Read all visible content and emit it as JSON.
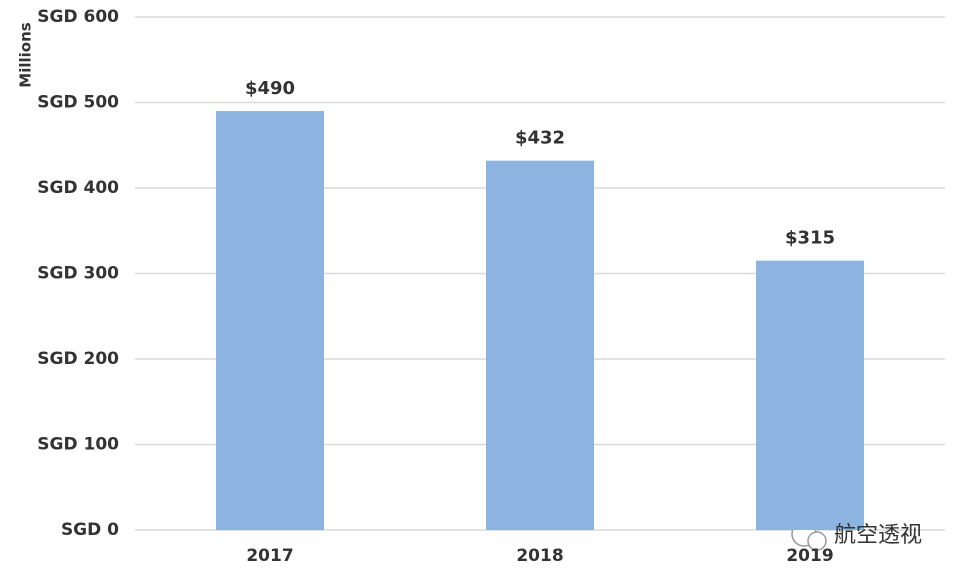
{
  "chart_data": {
    "type": "bar",
    "y_axis_label": "Millions",
    "categories": [
      "2017",
      "2018",
      "2019"
    ],
    "values": [
      490,
      432,
      315
    ],
    "value_labels": [
      "$490",
      "$432",
      "$315"
    ],
    "color": "#8db4e0",
    "ylim": [
      0,
      600
    ],
    "yticks": [
      {
        "value": 0,
        "label": "SGD 0"
      },
      {
        "value": 100,
        "label": "SGD 100"
      },
      {
        "value": 200,
        "label": "SGD 200"
      },
      {
        "value": 300,
        "label": "SGD 300"
      },
      {
        "value": 400,
        "label": "SGD 400"
      },
      {
        "value": 500,
        "label": "SGD 500"
      },
      {
        "value": 600,
        "label": "SGD 600"
      }
    ],
    "grid": true,
    "watermark": "航空透视"
  }
}
